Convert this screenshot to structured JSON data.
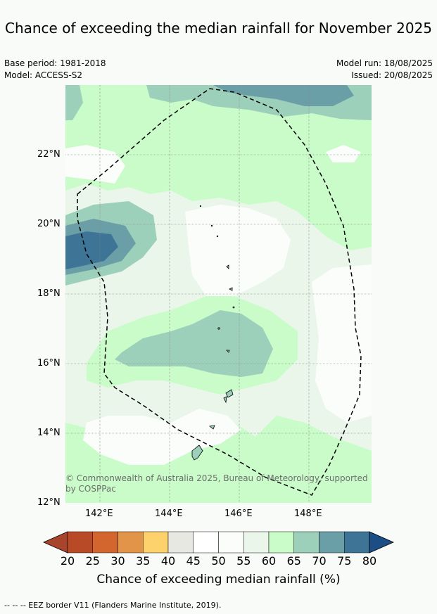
{
  "title": "Chance of exceeding the median rainfall for November 2025",
  "meta": {
    "base_period": "Base period: 1981-2018",
    "model": "Model: ACCESS-S2",
    "model_run": "Model run: 18/08/2025",
    "issued": "Issued: 20/08/2025"
  },
  "axes": {
    "lat_labels": [
      "22°N",
      "20°N",
      "18°N",
      "16°N",
      "14°N",
      "12°N"
    ],
    "lon_labels": [
      "142°E",
      "144°E",
      "146°E",
      "148°E"
    ]
  },
  "copyright": "© Commonwealth of Australia 2025, Bureau of Meteorology, supported by COSPPac",
  "colorbar": {
    "ticks": [
      "20",
      "25",
      "30",
      "35",
      "40",
      "45",
      "50",
      "55",
      "60",
      "65",
      "70",
      "75",
      "80"
    ],
    "colors": [
      "#a8442b",
      "#b84a28",
      "#d2662e",
      "#e29449",
      "#fdd16b",
      "#e8e8e3",
      "#ffffff",
      "#fbfdfb",
      "#eaf6ea",
      "#c9fcc9",
      "#9dd0ba",
      "#6a9fa7",
      "#3e7496",
      "#1c4e85"
    ],
    "label": "Chance of exceeding median rainfall (%)"
  },
  "footer": "--  --  -- EEZ border V11 (Flanders Marine Institute, 2019)."
}
